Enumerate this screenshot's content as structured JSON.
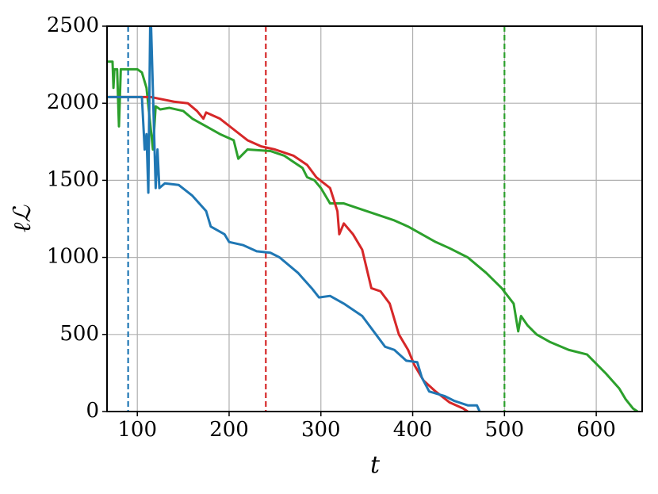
{
  "chart_data": {
    "type": "line",
    "xlabel": "t",
    "ylabel": "ℓℒ",
    "xlim": [
      67,
      650
    ],
    "ylim": [
      0,
      2500
    ],
    "xticks": [
      100,
      200,
      300,
      400,
      500,
      600
    ],
    "yticks": [
      0,
      500,
      1000,
      1500,
      2000,
      2500
    ],
    "grid": true,
    "vlines": [
      {
        "x": 90,
        "color": "#1f77b4"
      },
      {
        "x": 240,
        "color": "#d62728"
      },
      {
        "x": 500,
        "color": "#2ca02c"
      }
    ],
    "series": [
      {
        "color": "#2ca02c",
        "x": [
          67,
          73,
          74,
          75,
          78,
          80,
          82,
          100,
          105,
          110,
          117,
          120,
          125,
          135,
          150,
          160,
          175,
          190,
          205,
          210,
          220,
          245,
          260,
          270,
          280,
          285,
          293,
          300,
          310,
          325,
          340,
          360,
          380,
          395,
          410,
          425,
          440,
          460,
          480,
          497,
          510,
          515,
          518,
          525,
          535,
          550,
          570,
          590,
          610,
          625,
          632,
          640,
          645
        ],
        "values": [
          2270,
          2270,
          2100,
          2220,
          2220,
          1850,
          2220,
          2220,
          2200,
          2100,
          1700,
          1980,
          1960,
          1970,
          1950,
          1900,
          1850,
          1800,
          1760,
          1640,
          1700,
          1690,
          1660,
          1620,
          1580,
          1520,
          1500,
          1450,
          1350,
          1350,
          1320,
          1280,
          1240,
          1200,
          1150,
          1100,
          1060,
          1000,
          900,
          800,
          700,
          520,
          620,
          560,
          500,
          450,
          400,
          370,
          250,
          150,
          80,
          20,
          0
        ]
      },
      {
        "color": "#d62728",
        "x": [
          67,
          115,
          140,
          155,
          165,
          172,
          175,
          190,
          205,
          220,
          235,
          250,
          270,
          285,
          295,
          310,
          318,
          320,
          325,
          335,
          345,
          355,
          365,
          375,
          385,
          395,
          402,
          412,
          425,
          440,
          455,
          460
        ],
        "values": [
          2040,
          2040,
          2010,
          2000,
          1950,
          1900,
          1940,
          1900,
          1830,
          1760,
          1720,
          1700,
          1660,
          1600,
          1520,
          1450,
          1300,
          1150,
          1220,
          1150,
          1050,
          800,
          780,
          700,
          500,
          400,
          300,
          200,
          130,
          60,
          20,
          0
        ]
      },
      {
        "color": "#1f77b4",
        "x": [
          67,
          105,
          108,
          110,
          112,
          114,
          115,
          120,
          122,
          124,
          130,
          145,
          160,
          175,
          180,
          195,
          200,
          215,
          230,
          245,
          255,
          275,
          290,
          298,
          310,
          325,
          345,
          360,
          370,
          380,
          393,
          405,
          410,
          418,
          435,
          445,
          460,
          470,
          473
        ],
        "values": [
          2040,
          2040,
          1700,
          1800,
          1420,
          2500,
          2500,
          1450,
          1700,
          1450,
          1480,
          1470,
          1400,
          1300,
          1200,
          1150,
          1100,
          1080,
          1040,
          1030,
          1000,
          900,
          800,
          740,
          750,
          700,
          620,
          500,
          420,
          400,
          330,
          320,
          220,
          130,
          100,
          70,
          40,
          40,
          0
        ]
      }
    ]
  }
}
